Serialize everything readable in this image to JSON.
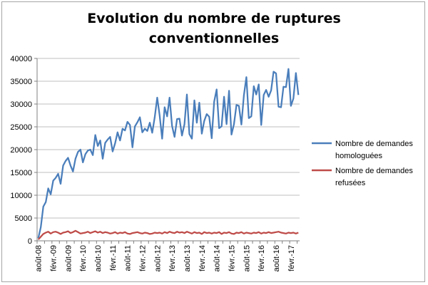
{
  "chart_data": {
    "type": "line",
    "title": "Evolution du nombre de ruptures\nconventionnelles",
    "xlabel": "",
    "ylabel": "",
    "ylim": [
      0,
      40000
    ],
    "yticks": [
      0,
      5000,
      10000,
      15000,
      20000,
      25000,
      30000,
      35000,
      40000
    ],
    "grid": "horizontal",
    "legend_position": "right",
    "start_month": "2008-08",
    "x_tick_labels": [
      "août-08",
      "févr.-09",
      "août-09",
      "févr.-10",
      "août-10",
      "févr.-11",
      "août-11",
      "févr.-12",
      "août-12",
      "févr.-13",
      "août-13",
      "févr.-14",
      "août-14",
      "févr.-15",
      "août-15",
      "févr.-16",
      "août-16",
      "févr.-17"
    ],
    "series": [
      {
        "name": "Nombre de demandes homologuées",
        "color": "#4a7ebb",
        "values": [
          600,
          3000,
          7500,
          8500,
          11500,
          10200,
          13200,
          13800,
          14700,
          12500,
          16500,
          17500,
          18200,
          16500,
          15200,
          18000,
          19500,
          20000,
          17200,
          19000,
          19800,
          20000,
          18800,
          23200,
          20800,
          22000,
          18000,
          21500,
          22200,
          22800,
          19600,
          21400,
          23800,
          22000,
          24600,
          24200,
          26100,
          25400,
          20500,
          25100,
          26000,
          27100,
          23800,
          24600,
          24100,
          25900,
          23700,
          27100,
          31400,
          27500,
          22400,
          29300,
          27300,
          31400,
          25200,
          22800,
          26700,
          26800,
          23100,
          25600,
          32100,
          23400,
          22400,
          30800,
          25900,
          30300,
          23500,
          26300,
          27800,
          27200,
          22500,
          30500,
          33200,
          24700,
          25100,
          31600,
          25600,
          32900,
          23300,
          25600,
          29800,
          29600,
          25500,
          31900,
          35900,
          26900,
          27300,
          33900,
          32100,
          34300,
          25400,
          32000,
          33100,
          31600,
          33000,
          37100,
          36700,
          29400,
          29300,
          33800,
          33700,
          37700,
          29600,
          31200,
          36800,
          32000
        ]
      },
      {
        "name": "Nombre de demandes refusées",
        "color": "#be4b48",
        "values": [
          300,
          900,
          1500,
          1800,
          2000,
          1600,
          1900,
          2000,
          1800,
          1500,
          1800,
          1900,
          2100,
          1700,
          1900,
          2200,
          1900,
          1600,
          1700,
          1800,
          2000,
          1700,
          1900,
          2100,
          1800,
          2000,
          1700,
          1900,
          1800,
          1600,
          1700,
          1900,
          1600,
          1800,
          1700,
          1900,
          1600,
          1500,
          1700,
          1800,
          1900,
          1700,
          1600,
          1800,
          1700,
          1500,
          1600,
          1800,
          1700,
          1800,
          1600,
          1900,
          1700,
          2000,
          1800,
          1700,
          2000,
          1800,
          1900,
          1700,
          2000,
          1800,
          1600,
          1900,
          1700,
          1800,
          1500,
          1900,
          1700,
          1800,
          1600,
          1800,
          1700,
          1900,
          1500,
          1800,
          1700,
          1900,
          1600,
          1500,
          1800,
          1700,
          1900,
          1600,
          1800,
          1700,
          1600,
          1800,
          1700,
          1900,
          1600,
          1800,
          1700,
          1900,
          1700,
          1800,
          1900,
          2000,
          1800,
          1700,
          1600,
          1800,
          1700,
          1800,
          1600,
          1800
        ]
      }
    ]
  }
}
